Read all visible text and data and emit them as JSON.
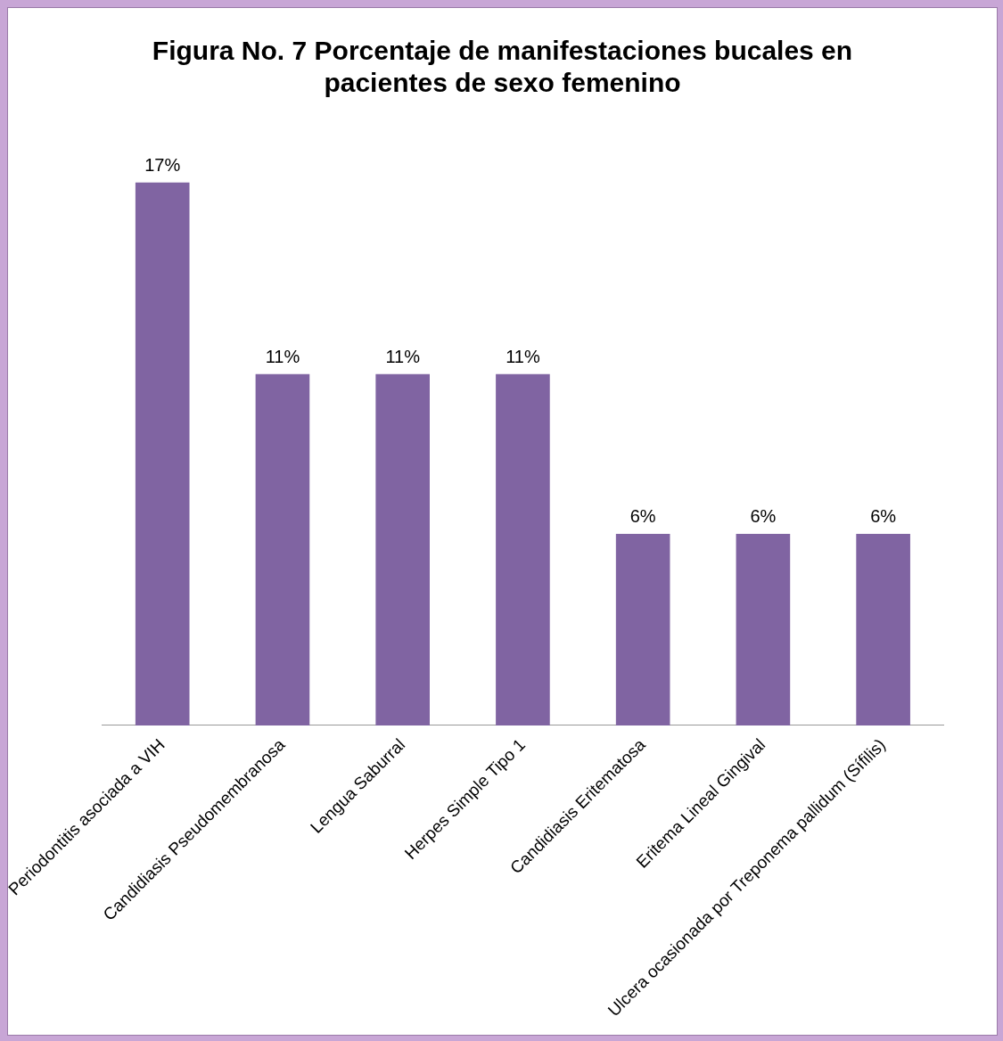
{
  "chart_data": {
    "type": "bar",
    "title": "Figura No. 7 Porcentaje de manifestaciones bucales en pacientes de sexo femenino",
    "categories": [
      "Periodontitis asociada a VIH",
      "Candidiasis Pseudomembranosa",
      "Lengua Saburral",
      "Herpes Simple Tipo 1",
      "Candidiasis Eritematosa",
      "Eritema Lineal Gingival",
      "Ulcera ocasionada por Treponema pallidum (Sífilis)"
    ],
    "values": [
      17,
      11,
      11,
      11,
      6,
      6,
      6
    ],
    "value_labels": [
      "17%",
      "11%",
      "11%",
      "11%",
      "6%",
      "6%",
      "6%"
    ],
    "color": "#8064a2",
    "grid": false,
    "legend": false
  }
}
